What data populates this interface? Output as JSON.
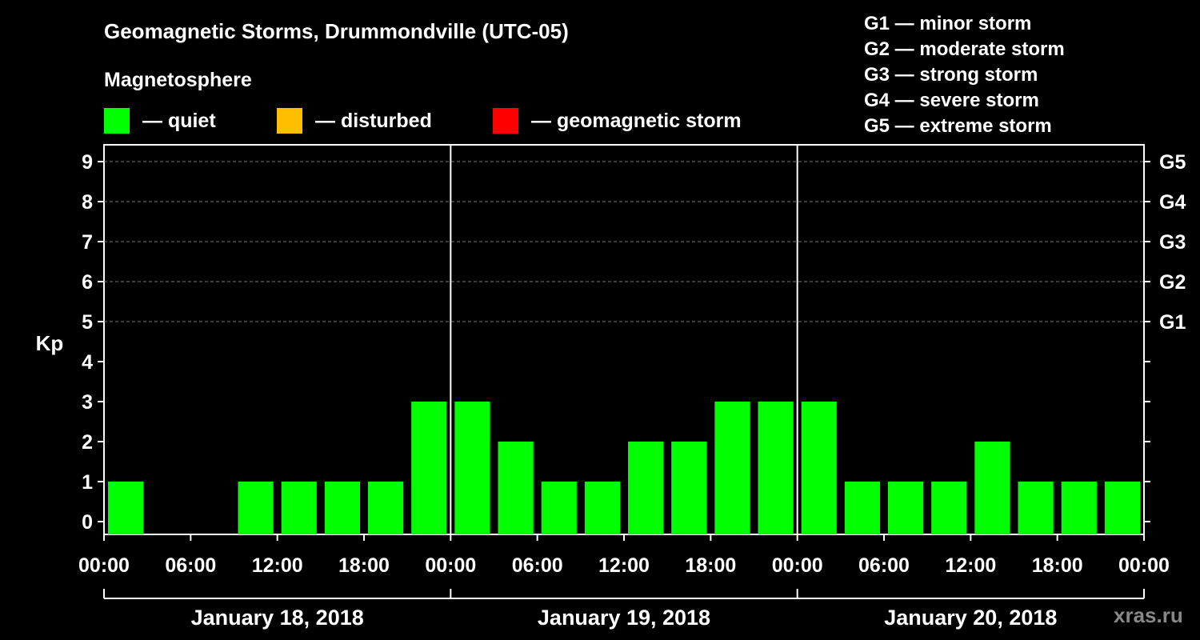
{
  "header": {
    "title": "Geomagnetic Storms, Drummondville (UTC-05)",
    "subtitle": "Magnetosphere"
  },
  "legend": [
    {
      "label": "— quiet",
      "color": "#00ff00"
    },
    {
      "label": "— disturbed",
      "color": "#ffbf00"
    },
    {
      "label": "— geomagnetic storm",
      "color": "#ff0000"
    }
  ],
  "storm_scale": [
    "G1 — minor storm",
    "G2 — moderate storm",
    "G3 — strong storm",
    "G4 — severe storm",
    "G5 — extreme storm"
  ],
  "watermark": "xras.ru",
  "chart_data": {
    "type": "bar",
    "ylabel": "Kp",
    "ylim": [
      0,
      9
    ],
    "y_ticks": [
      "0",
      "1",
      "2",
      "3",
      "4",
      "5",
      "6",
      "7",
      "8",
      "9"
    ],
    "right_axis": [
      {
        "kp": 5,
        "label": "G1"
      },
      {
        "kp": 6,
        "label": "G2"
      },
      {
        "kp": 7,
        "label": "G3"
      },
      {
        "kp": 8,
        "label": "G4"
      },
      {
        "kp": 9,
        "label": "G5"
      }
    ],
    "x_tick_labels": [
      "00:00",
      "06:00",
      "12:00",
      "18:00",
      "00:00",
      "06:00",
      "12:00",
      "18:00",
      "00:00",
      "06:00",
      "12:00",
      "18:00",
      "00:00"
    ],
    "days": [
      "January 18, 2018",
      "January 19, 2018",
      "January 20, 2018"
    ],
    "bar_color": "#00ff00",
    "grid": "dashed at Kp 5-9",
    "bars": [
      {
        "start": "January 18, 2018 00:00",
        "value": 1
      },
      {
        "start": "January 18, 2018 03:00",
        "value": 0
      },
      {
        "start": "January 18, 2018 06:00",
        "value": 0
      },
      {
        "start": "January 18, 2018 09:00",
        "value": 1
      },
      {
        "start": "January 18, 2018 12:00",
        "value": 1
      },
      {
        "start": "January 18, 2018 15:00",
        "value": 1
      },
      {
        "start": "January 18, 2018 18:00",
        "value": 1
      },
      {
        "start": "January 18, 2018 21:00",
        "value": 3
      },
      {
        "start": "January 19, 2018 00:00",
        "value": 3
      },
      {
        "start": "January 19, 2018 03:00",
        "value": 2
      },
      {
        "start": "January 19, 2018 06:00",
        "value": 1
      },
      {
        "start": "January 19, 2018 09:00",
        "value": 1
      },
      {
        "start": "January 19, 2018 12:00",
        "value": 2
      },
      {
        "start": "January 19, 2018 15:00",
        "value": 2
      },
      {
        "start": "January 19, 2018 18:00",
        "value": 3
      },
      {
        "start": "January 19, 2018 21:00",
        "value": 3
      },
      {
        "start": "January 20, 2018 00:00",
        "value": 3
      },
      {
        "start": "January 20, 2018 03:00",
        "value": 1
      },
      {
        "start": "January 20, 2018 06:00",
        "value": 1
      },
      {
        "start": "January 20, 2018 09:00",
        "value": 1
      },
      {
        "start": "January 20, 2018 12:00",
        "value": 2
      },
      {
        "start": "January 20, 2018 15:00",
        "value": 1
      },
      {
        "start": "January 20, 2018 18:00",
        "value": 1
      },
      {
        "start": "January 20, 2018 21:00",
        "value": 1
      }
    ]
  }
}
